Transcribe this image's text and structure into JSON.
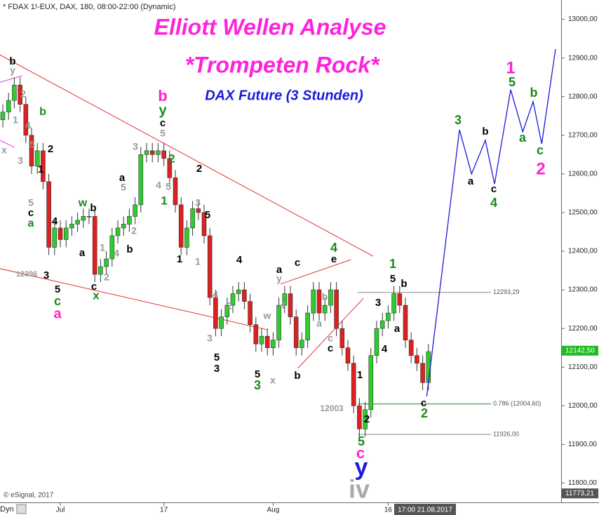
{
  "chart_data": {
    "type": "candlestick",
    "header": "* FDAX 1!-EUX, DAX, 180, 08:00-22:00 (Dynamic)",
    "title": "Elliott Wellen Analyse",
    "subtitle": "*Trompeten Rock*",
    "instrument_label": "DAX Future (3 Stunden)",
    "credit": "© eSignal, 2017",
    "timeframe_label": "Dyn",
    "cursor_label": "17:00 21.08.2017",
    "last_price": {
      "value": 12142.5,
      "label": "12142,50"
    },
    "axis_min_label": {
      "value": 11773.21,
      "label": "11773,21"
    },
    "up_color": "#2ecc2e",
    "down_color": "#dd2020",
    "ylim": [
      11750,
      13050
    ],
    "xlim": [
      -0.5,
      104.5
    ],
    "yticks": [
      {
        "value": 11800,
        "label": "11800,00"
      },
      {
        "value": 11900,
        "label": "11900,00"
      },
      {
        "value": 12000,
        "label": "12000,00"
      },
      {
        "value": 12100,
        "label": "12100,00"
      },
      {
        "value": 12200,
        "label": "12200,00"
      },
      {
        "value": 12300,
        "label": "12300,00"
      },
      {
        "value": 12400,
        "label": "12400,00"
      },
      {
        "value": 12500,
        "label": "12500,00"
      },
      {
        "value": 12600,
        "label": "12600,00"
      },
      {
        "value": 12700,
        "label": "12700,00"
      },
      {
        "value": 12800,
        "label": "12800,00"
      },
      {
        "value": 12900,
        "label": "12900,00"
      },
      {
        "value": 13000,
        "label": "13000,00"
      }
    ],
    "xticks": [
      {
        "value": 10,
        "label": "Jul"
      },
      {
        "value": 28,
        "label": "17"
      },
      {
        "value": 47,
        "label": "Aug"
      },
      {
        "value": 67,
        "label": "16"
      }
    ],
    "categories": [
      null,
      null,
      null,
      null,
      null,
      null,
      null,
      null,
      null,
      null,
      null,
      null,
      null,
      null,
      null,
      null,
      null,
      null,
      null,
      null,
      null,
      null,
      null,
      null,
      null,
      null,
      null,
      null,
      null,
      null,
      null,
      null,
      null,
      null,
      null,
      null,
      null,
      null,
      null,
      null,
      null,
      null,
      null,
      null,
      null,
      null,
      null,
      null,
      null,
      null,
      null,
      null,
      null,
      null,
      null,
      null,
      null,
      null,
      null,
      null,
      null,
      null,
      null,
      null,
      null,
      null,
      null,
      null,
      null,
      null,
      null,
      null,
      null,
      null,
      null
    ],
    "open": [
      12740,
      12760,
      12790,
      12830,
      12780,
      12700,
      12620,
      12660,
      12580,
      12410,
      12460,
      12430,
      12460,
      12470,
      12480,
      12490,
      12490,
      12340,
      12360,
      12380,
      12440,
      12460,
      12470,
      12490,
      12520,
      12650,
      12660,
      12650,
      12660,
      12640,
      12590,
      12520,
      12410,
      12460,
      12510,
      12500,
      12440,
      12280,
      12200,
      12230,
      12260,
      12290,
      12300,
      12270,
      12210,
      12160,
      12180,
      12150,
      12170,
      12260,
      12290,
      12230,
      12150,
      12170,
      12240,
      12300,
      12240,
      12260,
      12300,
      12200,
      12150,
      12110,
      12000,
      11940,
      11990,
      12130,
      12200,
      12220,
      12240,
      12290,
      12260,
      12170,
      12130,
      12110,
      12060
    ],
    "high": [
      12780,
      12810,
      12850,
      12850,
      12800,
      12720,
      12680,
      12680,
      12600,
      12480,
      12480,
      12480,
      12490,
      12500,
      12510,
      12510,
      12510,
      12380,
      12400,
      12460,
      12480,
      12490,
      12510,
      12540,
      12670,
      12680,
      12680,
      12680,
      12680,
      12660,
      12610,
      12540,
      12480,
      12530,
      12530,
      12520,
      12460,
      12300,
      12250,
      12280,
      12310,
      12320,
      12320,
      12290,
      12230,
      12200,
      12200,
      12190,
      12280,
      12310,
      12310,
      12250,
      12190,
      12260,
      12320,
      12320,
      12280,
      12320,
      12320,
      12220,
      12170,
      12130,
      12020,
      12010,
      12150,
      12220,
      12240,
      12260,
      12310,
      12310,
      12280,
      12190,
      12150,
      12130,
      12160
    ],
    "low": [
      12720,
      12740,
      12770,
      12760,
      12680,
      12600,
      12600,
      12560,
      12390,
      12390,
      12410,
      12410,
      12440,
      12450,
      12460,
      12470,
      12320,
      12320,
      12340,
      12360,
      12420,
      12440,
      12450,
      12470,
      12500,
      12630,
      12630,
      12630,
      12620,
      12570,
      12500,
      12390,
      12390,
      12440,
      12480,
      12420,
      12260,
      12180,
      12180,
      12210,
      12240,
      12270,
      12250,
      12190,
      12140,
      12140,
      12130,
      12130,
      12150,
      12240,
      12210,
      12130,
      12130,
      12150,
      12220,
      12220,
      12220,
      12240,
      12180,
      12130,
      12090,
      11980,
      11920,
      11920,
      11970,
      12110,
      12180,
      12200,
      12220,
      12240,
      12150,
      12110,
      12090,
      12040,
      12040
    ],
    "close": [
      12760,
      12790,
      12830,
      12780,
      12700,
      12620,
      12660,
      12580,
      12410,
      12460,
      12430,
      12460,
      12470,
      12480,
      12490,
      12490,
      12340,
      12360,
      12380,
      12440,
      12460,
      12470,
      12490,
      12520,
      12650,
      12660,
      12650,
      12660,
      12640,
      12590,
      12520,
      12410,
      12460,
      12510,
      12500,
      12440,
      12280,
      12200,
      12230,
      12260,
      12290,
      12300,
      12270,
      12210,
      12160,
      12180,
      12150,
      12170,
      12260,
      12290,
      12230,
      12150,
      12170,
      12240,
      12300,
      12240,
      12260,
      12300,
      12200,
      12150,
      12110,
      12000,
      11940,
      11990,
      12130,
      12200,
      12220,
      12240,
      12290,
      12260,
      12170,
      12130,
      12110,
      12060,
      12140
    ],
    "hlines": [
      {
        "value": 12293.29,
        "label": "12293,29",
        "color": "#888888"
      },
      {
        "value": 12004.6,
        "label": "0.786 (12004,60)",
        "color": "#1a8a1a"
      },
      {
        "value": 11926,
        "label": "11926,00",
        "color": "#888888"
      }
    ],
    "trendlines": [
      {
        "color": "#e03030",
        "x": [
          -0.5,
          64.4
        ],
        "values": [
          12908,
          12387
        ]
      },
      {
        "color": "#e03030",
        "x": [
          -0.5,
          45.9
        ],
        "values": [
          12355,
          12197
        ]
      },
      {
        "color": "#e03030",
        "x": [
          48.3,
          60.5
        ],
        "values": [
          12315,
          12378
        ]
      },
      {
        "color": "#e03030",
        "x": [
          51.3,
          62.7
        ],
        "values": [
          12097,
          12278
        ]
      },
      {
        "color": "#dd33dd",
        "x": [
          -0.5,
          3.4
        ],
        "values": [
          12837,
          12854
        ]
      },
      {
        "color": "#dd33dd",
        "x": [
          -0.5,
          2.0
        ],
        "values": [
          12687,
          12669
        ]
      }
    ],
    "projection": {
      "color": "#1a1adc",
      "x": [
        73.7,
        79.4,
        81.5,
        83.9,
        85.5,
        88.3,
        90.4,
        92.2,
        93.7,
        96.1
      ],
      "values": [
        12024,
        12714,
        12600,
        12687,
        12574,
        12818,
        12709,
        12787,
        12678,
        12923
      ]
    },
    "annotations": [
      {
        "text": "b",
        "color": "#000000"
      },
      {
        "text": "y",
        "color": "#999999"
      },
      {
        "text": "2",
        "color": "#999999"
      },
      {
        "text": "1",
        "color": "#999999"
      },
      {
        "text": "4",
        "color": "#999999"
      },
      {
        "text": "x",
        "color": "#999999"
      },
      {
        "text": "5",
        "color": "#999999"
      },
      {
        "text": "3",
        "color": "#999999"
      },
      {
        "text": "2",
        "color": "#000000"
      },
      {
        "text": "b",
        "color": "#1a8a1a"
      },
      {
        "text": "1",
        "color": "#000000"
      },
      {
        "text": "5",
        "color": "#999999"
      },
      {
        "text": "c",
        "color": "#000000"
      },
      {
        "text": "a",
        "color": "#1a8a1a"
      },
      {
        "text": "4",
        "color": "#000000"
      },
      {
        "text": "3",
        "color": "#000000"
      },
      {
        "text": "12396",
        "color": "#999999"
      },
      {
        "text": "5",
        "color": "#000000"
      },
      {
        "text": "c",
        "color": "#1a8a1a"
      },
      {
        "text": "a",
        "color": "#ff22cc"
      },
      {
        "text": "w",
        "color": "#1a8a1a"
      },
      {
        "text": "b",
        "color": "#000000"
      },
      {
        "text": "a",
        "color": "#000000"
      },
      {
        "text": "c",
        "color": "#000000"
      },
      {
        "text": "x",
        "color": "#1a8a1a"
      },
      {
        "text": "1",
        "color": "#999999"
      },
      {
        "text": "2",
        "color": "#999999"
      },
      {
        "text": "4",
        "color": "#999999"
      },
      {
        "text": "a",
        "color": "#000000"
      },
      {
        "text": "5",
        "color": "#999999"
      },
      {
        "text": "2",
        "color": "#999999"
      },
      {
        "text": "b",
        "color": "#000000"
      },
      {
        "text": "3",
        "color": "#999999"
      },
      {
        "text": "b",
        "color": "#ff22cc"
      },
      {
        "text": "y",
        "color": "#1a8a1a"
      },
      {
        "text": "c",
        "color": "#000000"
      },
      {
        "text": "5",
        "color": "#999999"
      },
      {
        "text": "2",
        "color": "#1a8a1a"
      },
      {
        "text": "4",
        "color": "#999999"
      },
      {
        "text": "5",
        "color": "#999999"
      },
      {
        "text": "1",
        "color": "#1a8a1a"
      },
      {
        "text": "2",
        "color": "#000000"
      },
      {
        "text": "3",
        "color": "#999999"
      },
      {
        "text": "5",
        "color": "#000000"
      },
      {
        "text": "1",
        "color": "#000000"
      },
      {
        "text": "1",
        "color": "#999999"
      },
      {
        "text": "4",
        "color": "#999999"
      },
      {
        "text": "3",
        "color": "#999999"
      },
      {
        "text": "5",
        "color": "#000000"
      },
      {
        "text": "3",
        "color": "#000000"
      },
      {
        "text": "4",
        "color": "#000000"
      },
      {
        "text": "2",
        "color": "#999999"
      },
      {
        "text": "w",
        "color": "#999999"
      },
      {
        "text": "5",
        "color": "#000000"
      },
      {
        "text": "3",
        "color": "#1a8a1a"
      },
      {
        "text": "x",
        "color": "#999999"
      },
      {
        "text": "a",
        "color": "#000000"
      },
      {
        "text": "y",
        "color": "#999999"
      },
      {
        "text": "4",
        "color": "#999999"
      },
      {
        "text": "c",
        "color": "#000000"
      },
      {
        "text": "b",
        "color": "#000000"
      },
      {
        "text": "4",
        "color": "#1a8a1a"
      },
      {
        "text": "e",
        "color": "#000000"
      },
      {
        "text": "b",
        "color": "#999999"
      },
      {
        "text": "a",
        "color": "#999999"
      },
      {
        "text": "c",
        "color": "#999999"
      },
      {
        "text": "c",
        "color": "#000000"
      },
      {
        "text": "12003",
        "color": "#999999"
      },
      {
        "text": "1",
        "color": "#000000"
      },
      {
        "text": "2",
        "color": "#000000"
      },
      {
        "text": "5",
        "color": "#1a8a1a"
      },
      {
        "text": "c",
        "color": "#ff22cc"
      },
      {
        "text": "y",
        "color": "#1a1adc"
      },
      {
        "text": "iv",
        "color": "#aaaaaa"
      },
      {
        "text": "1",
        "color": "#1a8a1a"
      },
      {
        "text": "5",
        "color": "#000000"
      },
      {
        "text": "b",
        "color": "#000000"
      },
      {
        "text": "3",
        "color": "#000000"
      },
      {
        "text": "a",
        "color": "#000000"
      },
      {
        "text": "4",
        "color": "#000000"
      },
      {
        "text": "c",
        "color": "#000000"
      },
      {
        "text": "2",
        "color": "#1a8a1a"
      },
      {
        "text": "3",
        "color": "#1a8a1a"
      },
      {
        "text": "b",
        "color": "#000000"
      },
      {
        "text": "a",
        "color": "#000000"
      },
      {
        "text": "c",
        "color": "#000000"
      },
      {
        "text": "4",
        "color": "#1a8a1a"
      },
      {
        "text": "1",
        "color": "#ff22cc"
      },
      {
        "text": "5",
        "color": "#1a8a1a"
      },
      {
        "text": "b",
        "color": "#1a8a1a"
      },
      {
        "text": "a",
        "color": "#1a8a1a"
      },
      {
        "text": "c",
        "color": "#1a8a1a"
      },
      {
        "text": "2",
        "color": "#ff22cc"
      }
    ]
  }
}
